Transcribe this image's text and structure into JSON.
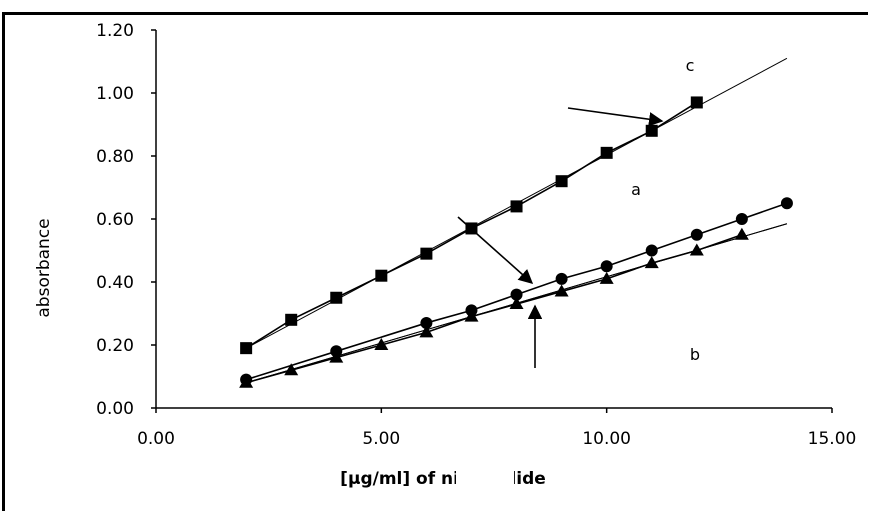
{
  "chart_data": {
    "type": "scatter",
    "xlabel": "[µg/ml] of nimesulide",
    "ylabel": "absorbance",
    "xlim": [
      0,
      15
    ],
    "ylim": [
      0,
      1.2
    ],
    "x_ticks": [
      "0.00",
      "5.00",
      "10.00",
      "15.00"
    ],
    "y_ticks": [
      "0.00",
      "0.20",
      "0.40",
      "0.60",
      "0.80",
      "1.00",
      "1.20"
    ],
    "grid": false,
    "annotations": [
      "a",
      "b",
      "c"
    ],
    "series": [
      {
        "marker": "square",
        "x": [
          2,
          3,
          4,
          5,
          6,
          7,
          8,
          9,
          10,
          11,
          12
        ],
        "y": [
          0.19,
          0.28,
          0.35,
          0.42,
          0.49,
          0.57,
          0.64,
          0.72,
          0.81,
          0.88,
          0.97
        ],
        "fit": {
          "x": [
            2,
            14
          ],
          "y": [
            0.19,
            1.11
          ]
        }
      },
      {
        "marker": "circle",
        "x": [
          2,
          4,
          6,
          7,
          8,
          9,
          10,
          11,
          12,
          13,
          14
        ],
        "y": [
          0.09,
          0.18,
          0.27,
          0.31,
          0.36,
          0.41,
          0.45,
          0.5,
          0.55,
          0.6,
          0.65
        ],
        "fit": {
          "x": [
            2,
            14
          ],
          "y": [
            0.08,
            0.585
          ]
        }
      },
      {
        "marker": "triangle",
        "x": [
          2,
          3,
          4,
          5,
          6,
          7,
          8,
          9,
          10,
          11,
          12,
          13
        ],
        "y": [
          0.08,
          0.12,
          0.16,
          0.2,
          0.24,
          0.29,
          0.33,
          0.37,
          0.41,
          0.46,
          0.5,
          0.55
        ],
        "fit": {
          "x": [
            2,
            14
          ],
          "y": [
            0.08,
            0.585
          ]
        }
      }
    ]
  }
}
